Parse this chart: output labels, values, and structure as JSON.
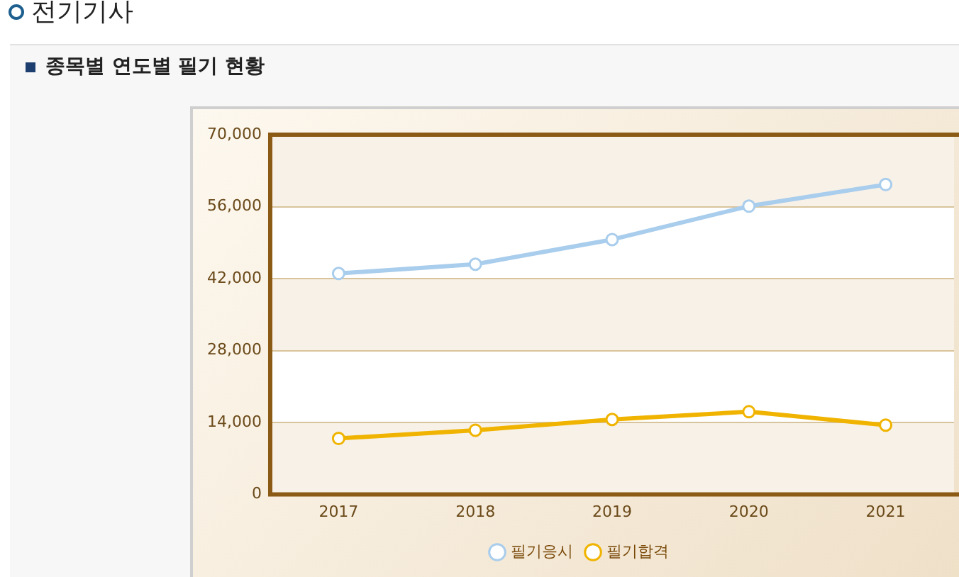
{
  "chart_data": {
    "type": "line",
    "title": "전기기사",
    "subtitle": "종목별 연도별 필기 현황",
    "categories": [
      "2017",
      "2018",
      "2019",
      "2020",
      "2021"
    ],
    "series": [
      {
        "name": "필기응시",
        "color": "#a9cdec",
        "values": [
          43000,
          44800,
          49600,
          56100,
          60300
        ]
      },
      {
        "name": "필기합격",
        "color": "#f0b400",
        "values": [
          10900,
          12500,
          14600,
          16100,
          13500
        ]
      }
    ],
    "ylim": [
      0,
      70000
    ],
    "yticks": [
      {
        "value": 0,
        "label": "0"
      },
      {
        "value": 14000,
        "label": "14,000"
      },
      {
        "value": 28000,
        "label": "28,000"
      },
      {
        "value": 42000,
        "label": "42,000"
      },
      {
        "value": 56000,
        "label": "56,000"
      },
      {
        "value": 70000,
        "label": "70,000"
      }
    ],
    "grid": "y",
    "legend": "bottom",
    "marker": "circle",
    "line_style": "solid"
  }
}
